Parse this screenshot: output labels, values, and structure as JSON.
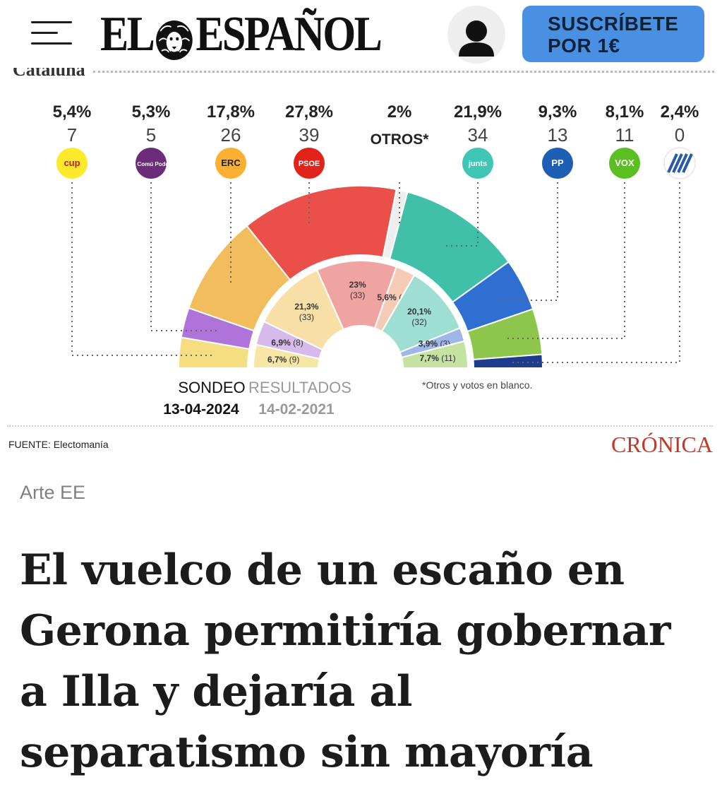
{
  "header": {
    "logo": "EL ESPAÑOL",
    "logo_left": "EL",
    "logo_right": "ESPAÑOL",
    "subscribe_line1": "SUSCRÍBETE",
    "subscribe_line2": "POR 1€"
  },
  "infographic": {
    "region": "Cataluña",
    "otros_label": "OTROS*",
    "sondeo_label": "SONDEO",
    "sondeo_date": "13-04-2024",
    "resultados_label": "RESULTADOS",
    "resultados_date": "14-02-2021",
    "note": "*Otros y votos en blanco.",
    "source": "FUENTE: Electomanía",
    "brand": "CRÓNICA",
    "parties": [
      {
        "name": "CUP",
        "logo_text": "cup",
        "pct": "5,4%",
        "seats": "7",
        "color": "#f5de7f",
        "logo_bg": "#fdea2a",
        "logo_fg": "#c4161c"
      },
      {
        "name": "En Comú Podem",
        "logo_text": "En Comú Podem",
        "pct": "5,3%",
        "seats": "5",
        "color": "#b073d9",
        "logo_bg": "#6b2d7a",
        "logo_fg": "#ffffff"
      },
      {
        "name": "ERC",
        "logo_text": "ERC",
        "pct": "17,8%",
        "seats": "26",
        "color": "#f2bd5c",
        "logo_bg": "#fbb034",
        "logo_fg": "#222222"
      },
      {
        "name": "PSOE",
        "logo_text": "PSOE",
        "pct": "27,8%",
        "seats": "39",
        "color": "#ea4f4a",
        "logo_bg": "#e2231a",
        "logo_fg": "#ffffff"
      },
      {
        "name": "OTROS",
        "logo_text": "",
        "pct": "2%",
        "seats": "",
        "color": "#eeeeee",
        "logo_bg": "",
        "logo_fg": ""
      },
      {
        "name": "Junts",
        "logo_text": "junts",
        "pct": "21,9%",
        "seats": "34",
        "color": "#40c0a8",
        "logo_bg": "#3fc6b5",
        "logo_fg": "#ffffff"
      },
      {
        "name": "PP",
        "logo_text": "PP",
        "pct": "9,3%",
        "seats": "13",
        "color": "#2f6fd1",
        "logo_bg": "#1d5fb4",
        "logo_fg": "#ffffff"
      },
      {
        "name": "VOX",
        "logo_text": "VOX",
        "pct": "8,1%",
        "seats": "11",
        "color": "#8ec64d",
        "logo_bg": "#5bbf21",
        "logo_fg": "#ffffff"
      },
      {
        "name": "Cs",
        "logo_text": "",
        "pct": "2,4%",
        "seats": "0",
        "color": "#1d3d8c",
        "logo_bg": "#ffffff",
        "logo_fg": "#2a5ba8"
      }
    ],
    "results_2021": [
      {
        "name": "CUP",
        "label": "6,7% (9)",
        "pct": 6.7,
        "seats": 9,
        "color": "#f7e7a6"
      },
      {
        "name": "En Comú Podem",
        "label": "6,9% (8)",
        "pct": 6.9,
        "seats": 8,
        "color": "#d7b9ec"
      },
      {
        "name": "ERC",
        "label": "21,3% (33)",
        "pct": 21.3,
        "seats": 33,
        "color": "#f8dfa7"
      },
      {
        "name": "PSOE",
        "label": "23% (33)",
        "pct": 23,
        "seats": 33,
        "color": "#f0a4a2"
      },
      {
        "name": "OTROS",
        "label": "5,6% (6)",
        "pct": 5.6,
        "seats": 6,
        "color": "#f6cbb5"
      },
      {
        "name": "Junts",
        "label": "20,1% (32)",
        "pct": 20.1,
        "seats": 32,
        "color": "#9fded2"
      },
      {
        "name": "Cs",
        "label": "3,9% (3)",
        "pct": 3.9,
        "seats": 3,
        "color": "#9fb7e8"
      },
      {
        "name": "VOX",
        "label": "7,7% (11)",
        "pct": 7.7,
        "seats": 11,
        "color": "#c4e3a0"
      }
    ]
  },
  "article": {
    "caption": "Arte EE",
    "headline": "El vuelco de un escaño en Gerona permitiría gobernar a Illa y dejaría al separatismo sin mayoría"
  }
}
